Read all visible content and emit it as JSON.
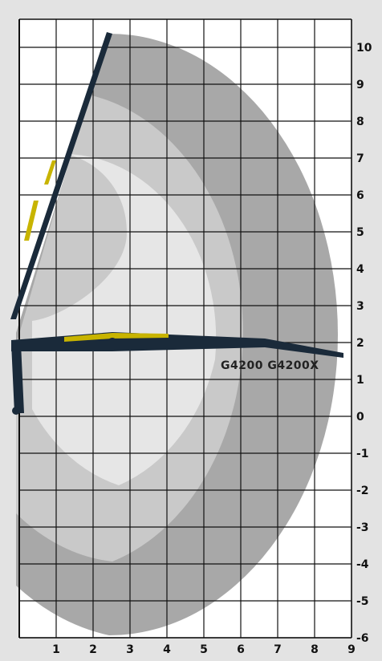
{
  "diagram": {
    "model_label": "G4200 G4200X",
    "x_axis": {
      "min": 0,
      "max": 9,
      "ticks": [
        "1",
        "2",
        "3",
        "4",
        "5",
        "6",
        "7",
        "8",
        "9"
      ]
    },
    "y_axis": {
      "min": -6,
      "max": 10,
      "ticks": [
        "10",
        "9",
        "8",
        "7",
        "6",
        "5",
        "4",
        "3",
        "2",
        "1",
        "0",
        "-1",
        "-2",
        "-3",
        "-4",
        "-5",
        "-6"
      ]
    },
    "reach_zones": [
      {
        "name": "outer-reach-zone",
        "color": "#a8a8a8"
      },
      {
        "name": "middle-reach-zone",
        "color": "#c9c9c9"
      },
      {
        "name": "inner-reach-zone",
        "color": "#e6e6e6"
      }
    ],
    "colors": {
      "background": "#e3e3e3",
      "grid_area": "#ffffff",
      "grid_line": "#111111",
      "boom_dark": "#1a2a3a",
      "boom_accent": "#c8b400"
    },
    "boom_icon": "crane-boom-silhouette"
  }
}
